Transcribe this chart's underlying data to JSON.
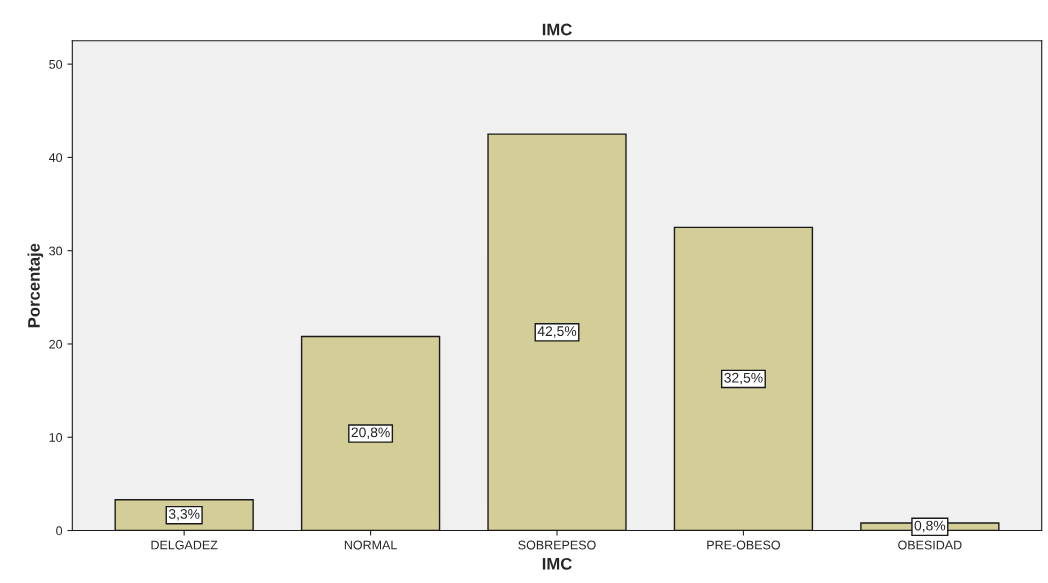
{
  "chart_data": {
    "type": "bar",
    "title": "IMC",
    "xlabel": "IMC",
    "ylabel": "Porcentaje",
    "categories": [
      "DELGADEZ",
      "NORMAL",
      "SOBREPESO",
      "PRE-OBESO",
      "OBESIDAD"
    ],
    "values": [
      3.3,
      20.8,
      42.5,
      32.5,
      0.8
    ],
    "value_labels": [
      "3,3%",
      "20,8%",
      "42,5%",
      "32,5%",
      "0,8%"
    ],
    "color": "#d3cd98",
    "ylim": [
      0,
      52.5
    ],
    "yticks": [
      0,
      10,
      20,
      30,
      40,
      50
    ],
    "grid": false
  }
}
